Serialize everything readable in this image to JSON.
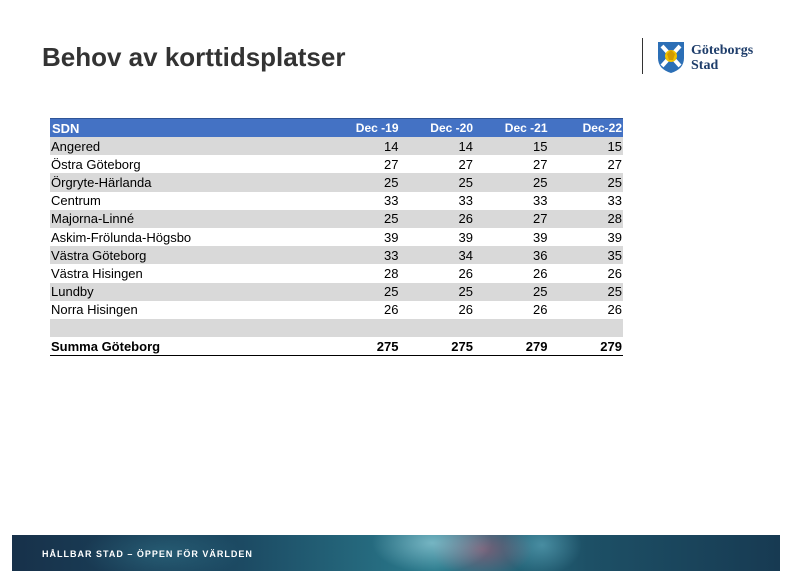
{
  "slide": {
    "title": "Behov av korttidsplatser"
  },
  "logo": {
    "line1": "Göteborgs",
    "line2": "Stad"
  },
  "table": {
    "headers": [
      "SDN",
      "Dec -19",
      "Dec -20",
      "Dec -21",
      "Dec-22"
    ],
    "rows": [
      {
        "name": "Angered",
        "values": [
          "14",
          "14",
          "15",
          "15"
        ]
      },
      {
        "name": "Östra Göteborg",
        "values": [
          "27",
          "27",
          "27",
          "27"
        ]
      },
      {
        "name": "Örgryte-Härlanda",
        "values": [
          "25",
          "25",
          "25",
          "25"
        ]
      },
      {
        "name": "Centrum",
        "values": [
          "33",
          "33",
          "33",
          "33"
        ]
      },
      {
        "name": "Majorna-Linné",
        "values": [
          "25",
          "26",
          "27",
          "28"
        ]
      },
      {
        "name": "Askim-Frölunda-Högsbo",
        "values": [
          "39",
          "39",
          "39",
          "39"
        ]
      },
      {
        "name": "Västra Göteborg",
        "values": [
          "33",
          "34",
          "36",
          "35"
        ]
      },
      {
        "name": "Västra Hisingen",
        "values": [
          "28",
          "26",
          "26",
          "26"
        ]
      },
      {
        "name": "Lundby",
        "values": [
          "25",
          "25",
          "25",
          "25"
        ]
      },
      {
        "name": "Norra Hisingen",
        "values": [
          "26",
          "26",
          "26",
          "26"
        ]
      }
    ],
    "total": {
      "name": "Summa Göteborg",
      "values": [
        "275",
        "275",
        "279",
        "279"
      ]
    }
  },
  "footer": {
    "tagline": "HÅLLBAR STAD – ÖPPEN FÖR VÄRLDEN"
  },
  "colors": {
    "header_bg": "#4472c4",
    "shade_row": "#d9d9d9",
    "title": "#333333"
  }
}
